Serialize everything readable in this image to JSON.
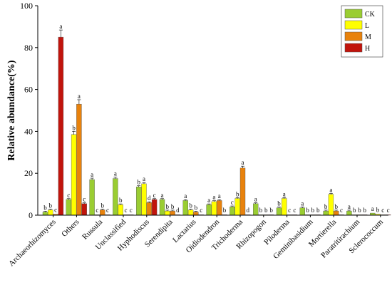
{
  "chart_data": {
    "type": "bar",
    "title": "",
    "xlabel": "",
    "ylabel": "Relative abundance(%)",
    "ylim": [
      0,
      100
    ],
    "yticks": [
      0,
      20,
      40,
      60,
      80,
      100
    ],
    "categories": [
      "Archaeorhizomyces",
      "Others",
      "Russula",
      "Unclassified",
      "Hyphodiscus",
      "Serendipita",
      "Lactarius",
      "Oidiodendron",
      "Trichoderma",
      "Rhizopogon",
      "Piloderma",
      "Geminibasidium",
      "Mortierella",
      "Paratritirachium",
      "Sclerococcum"
    ],
    "legend_position": "top-right",
    "series": [
      {
        "name": "CK",
        "color": "#9ACD32",
        "values": [
          1.5,
          7.5,
          17.0,
          17.5,
          13.5,
          7.5,
          7.0,
          5.0,
          4.0,
          5.5,
          3.5,
          3.5,
          2.0,
          2.0,
          1.0
        ],
        "letters": [
          "b",
          "c",
          "a",
          "a",
          "b",
          "a",
          "a",
          "a",
          "c",
          "a",
          "b",
          "a",
          "b",
          "a",
          "a"
        ]
      },
      {
        "name": "L",
        "color": "#FFFF00",
        "values": [
          2.5,
          38.5,
          0.2,
          5.0,
          15.0,
          2.0,
          2.5,
          6.5,
          8.0,
          0.2,
          8.0,
          0.2,
          10.0,
          0.2,
          0.5
        ],
        "letters": [
          "b",
          "b",
          "c",
          "b",
          "a",
          "b",
          "b",
          "a",
          "b",
          "b",
          "a",
          "b",
          "a",
          "b",
          "b"
        ]
      },
      {
        "name": "M",
        "color": "#E8820C",
        "values": [
          0.5,
          53.0,
          2.5,
          0.2,
          6.0,
          2.0,
          1.5,
          7.0,
          22.5,
          0.2,
          0.2,
          0.2,
          2.0,
          0.2,
          0.2
        ],
        "letters": [
          "c",
          "a",
          "b",
          "c",
          "d",
          "b",
          "b",
          "a",
          "a",
          "b",
          "c",
          "b",
          "b",
          "b",
          "c"
        ]
      },
      {
        "name": "H",
        "color": "#C1140C",
        "values": [
          85.0,
          5.5,
          0.2,
          0.2,
          7.5,
          0.2,
          0.2,
          0.2,
          0.2,
          0.2,
          0.2,
          0.2,
          0.2,
          0.2,
          0.2
        ],
        "letters": [
          "a",
          "c",
          "c",
          "c",
          "c",
          "d",
          "c",
          "b",
          "d",
          "b",
          "c",
          "b",
          "c",
          "b",
          "c"
        ]
      }
    ]
  }
}
